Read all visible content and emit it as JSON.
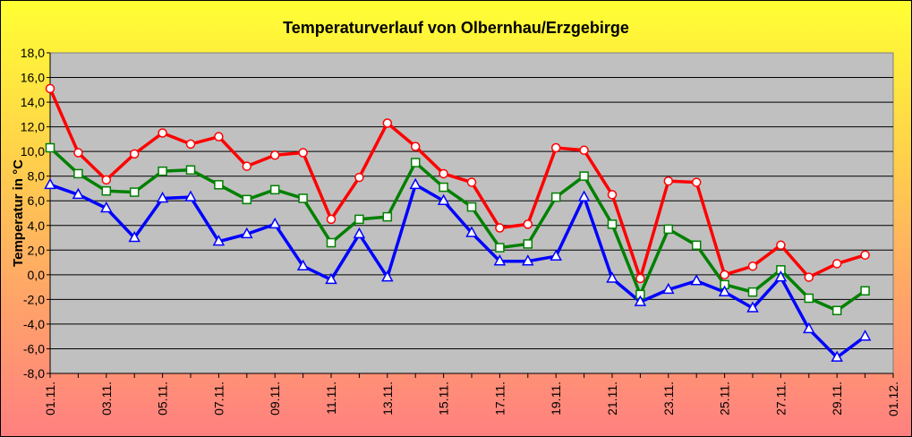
{
  "chart_data": {
    "type": "line",
    "title": "Temperaturverlauf von Olbernhau/Erzgebirge",
    "ylabel": "Temperatur in °C",
    "xlabel": "",
    "ylim": [
      -8,
      18
    ],
    "y_ticks": [
      "-8,0",
      "-6,0",
      "-4,0",
      "-2,0",
      "0,0",
      "2,0",
      "4,0",
      "6,0",
      "8,0",
      "10,0",
      "12,0",
      "14,0",
      "16,0",
      "18,0"
    ],
    "x_tick_labels": [
      "01.11.",
      "03.11.",
      "05.11.",
      "07.11.",
      "09.11.",
      "11.11.",
      "13.11.",
      "15.11.",
      "17.11.",
      "19.11.",
      "21.11.",
      "23.11.",
      "25.11.",
      "27.11.",
      "29.11.",
      "01.12."
    ],
    "x_days": [
      1,
      2,
      3,
      4,
      5,
      6,
      7,
      8,
      9,
      10,
      11,
      12,
      13,
      14,
      15,
      16,
      17,
      18,
      19,
      20,
      21,
      22,
      23,
      24,
      25,
      26,
      27,
      28,
      29,
      30
    ],
    "grid": true,
    "legend": "none",
    "plot_background": "#c0c0c0",
    "series": [
      {
        "color": "#ff0000",
        "marker": "circle",
        "values": [
          15.1,
          9.9,
          7.7,
          9.8,
          11.5,
          10.6,
          11.2,
          8.8,
          9.7,
          9.9,
          4.5,
          7.9,
          12.3,
          10.4,
          8.2,
          7.5,
          3.8,
          4.1,
          10.3,
          10.1,
          6.5,
          -0.3,
          7.6,
          7.5,
          0.0,
          0.7,
          2.4,
          -0.2,
          0.9,
          1.6
        ]
      },
      {
        "color": "#008000",
        "marker": "square",
        "values": [
          10.3,
          8.2,
          6.8,
          6.7,
          8.4,
          8.5,
          7.3,
          6.1,
          6.9,
          6.2,
          2.6,
          4.5,
          4.7,
          9.1,
          7.1,
          5.5,
          2.2,
          2.5,
          6.3,
          8.0,
          4.1,
          -1.6,
          3.7,
          2.4,
          -0.8,
          -1.4,
          0.4,
          -1.9,
          -2.9,
          -1.3
        ]
      },
      {
        "color": "#0000ff",
        "marker": "triangle",
        "values": [
          7.3,
          6.5,
          5.4,
          3.0,
          6.2,
          6.3,
          2.7,
          3.3,
          4.1,
          0.7,
          -0.4,
          3.3,
          -0.2,
          7.3,
          6.0,
          3.4,
          1.1,
          1.1,
          1.5,
          6.3,
          -0.3,
          -2.2,
          -1.2,
          -0.5,
          -1.4,
          -2.7,
          -0.2,
          -4.4,
          -6.7,
          -5.0
        ]
      }
    ]
  }
}
